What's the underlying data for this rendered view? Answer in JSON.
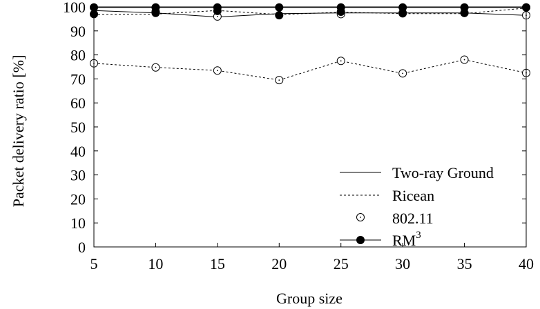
{
  "chart_data": {
    "type": "line",
    "xlabel": "Group size",
    "ylabel": "Packet delivery ratio [%]",
    "x": [
      5,
      10,
      15,
      20,
      25,
      30,
      35,
      40
    ],
    "xlim": [
      5,
      40
    ],
    "ylim": [
      0,
      100
    ],
    "xticks": [
      5,
      10,
      15,
      20,
      25,
      30,
      35,
      40
    ],
    "yticks": [
      0,
      10,
      20,
      30,
      40,
      50,
      60,
      70,
      80,
      90,
      100
    ],
    "grid": false,
    "legend_position": "bottom-right",
    "series": [
      {
        "name": "Two-ray Ground",
        "line": "solid",
        "marker": "none",
        "values": [
          98.5,
          97.5,
          95.8,
          97.2,
          97.5,
          97.5,
          97.5,
          96.5
        ]
      },
      {
        "name": "Ricean",
        "line": "dashed",
        "marker": "none",
        "values": [
          96.8,
          97.0,
          98.5,
          96.8,
          97.8,
          97.2,
          97.2,
          99.5
        ]
      },
      {
        "name": "802.11 (Two-ray Ground)",
        "line": "none",
        "marker": "open-circle",
        "values": [
          null,
          98.0,
          96.0,
          null,
          97.0,
          97.5,
          97.5,
          96.5
        ]
      },
      {
        "name": "802.11 (Ricean)",
        "line": "dashed",
        "marker": "open-circle",
        "values": [
          76.5,
          74.8,
          73.5,
          69.5,
          77.5,
          72.3,
          78.0,
          72.5
        ]
      },
      {
        "name": "RM3 (Two-ray Ground)",
        "line": "solid",
        "marker": "filled-circle",
        "values": [
          99.8,
          99.8,
          99.8,
          99.8,
          99.8,
          99.8,
          99.8,
          99.8
        ]
      },
      {
        "name": "RM3 (Ricean)",
        "line": "none",
        "marker": "filled-circle",
        "values": [
          97.0,
          97.5,
          98.3,
          96.5,
          98.0,
          97.3,
          97.5,
          99.8
        ]
      }
    ]
  },
  "legend": {
    "two_ray": "Two-ray Ground",
    "ricean": "Ricean",
    "ieee": "802.11",
    "rm_base": "RM",
    "rm_sup": "3"
  }
}
